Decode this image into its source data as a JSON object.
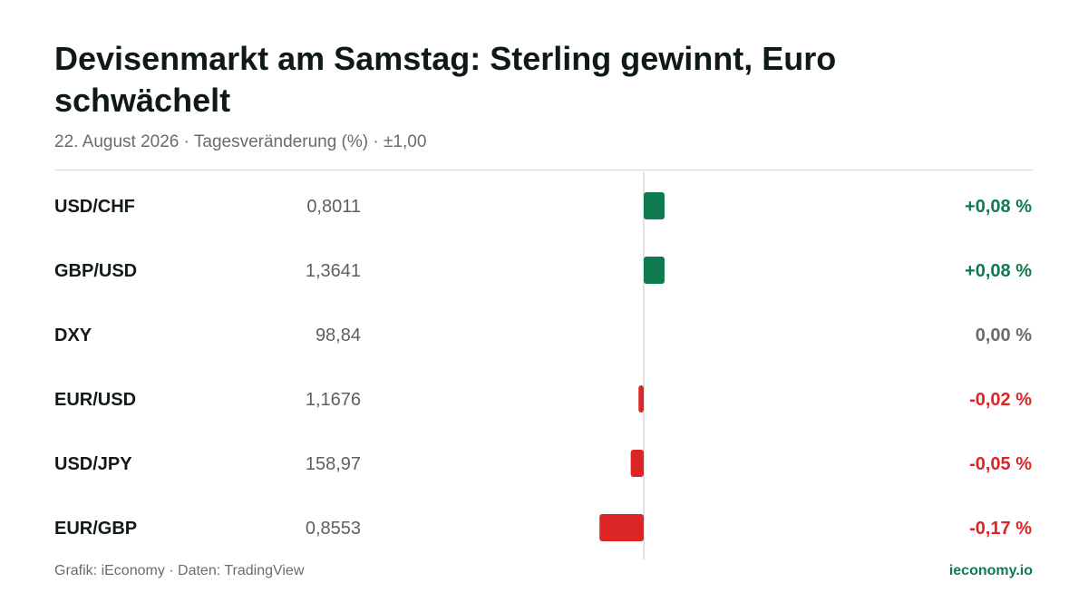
{
  "header": {
    "title": "Devisenmarkt am Samstag: Sterling gewinnt, Euro schwächelt",
    "subtitle": "22. August 2026 · Tagesveränderung (%) · ±1,00"
  },
  "colors": {
    "positive": "#0f7a4e",
    "negative": "#dc2626",
    "neutral": "#6b6b6b",
    "brand": "#0f7a58"
  },
  "chart_data": {
    "type": "bar",
    "orientation": "horizontal",
    "title": "Devisenmarkt am Samstag: Sterling gewinnt, Euro schwächelt",
    "subtitle": "22. August 2026 · Tagesveränderung (%) · ±1,00",
    "categories": [
      "USD/CHF",
      "GBP/USD",
      "DXY",
      "EUR/USD",
      "USD/JPY",
      "EUR/GBP"
    ],
    "prices": [
      "0,8011",
      "1,3641",
      "98,84",
      "1,1676",
      "158,97",
      "0,8553"
    ],
    "values": [
      0.08,
      0.08,
      0.0,
      -0.02,
      -0.05,
      -0.17
    ],
    "value_labels": [
      "+0,08 %",
      "+0,08 %",
      "0,00 %",
      "-0,02 %",
      "-0,05 %",
      "-0,17 %"
    ],
    "xlim": [
      -1,
      1
    ],
    "zero_line": true,
    "grid": false
  },
  "footer": {
    "source": "Grafik: iEconomy · Daten: TradingView",
    "brand": "ieconomy.io"
  }
}
